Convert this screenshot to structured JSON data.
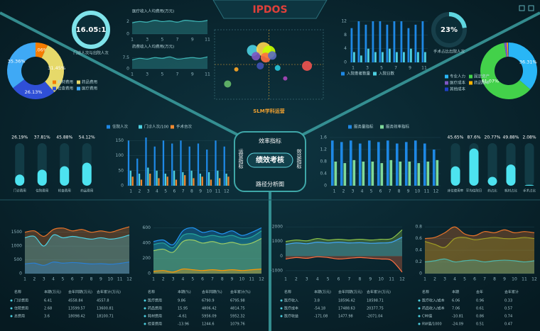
{
  "brand": "IPDOS",
  "hub": {
    "top": "效率指标",
    "center": "绩效考核",
    "left": "运营指标",
    "right": "效益指标",
    "bottom": "路径分析图"
  },
  "chart_data": [
    {
      "type": "gauge",
      "values": [
        16.05
      ],
      "value_labels": [
        "16.05:1"
      ],
      "label": "门诊人次与出院人次"
    },
    {
      "type": "pie",
      "categories": [
        "耗材费用",
        "药品费用",
        "检查费用",
        "医疗费用"
      ],
      "values": [
        7.06,
        31.45,
        26.13,
        35.36
      ],
      "value_labels": [
        "7.06%",
        "31.45%",
        "26.13%",
        "35.36%"
      ],
      "colors": [
        "#f57c00",
        "#e6d96a",
        "#2f4fd6",
        "#3fa9f5"
      ]
    },
    {
      "type": "line",
      "area": true,
      "title": "医疗收入人均费用(万元)",
      "categories": [
        "1",
        null,
        "3",
        null,
        "5",
        null,
        "7",
        null,
        "9",
        null,
        "11"
      ],
      "series": [
        {
          "color": "#3fb8b8",
          "values": [
            1.8,
            2.0,
            1.9,
            2.2,
            2.0,
            2.1,
            1.9,
            2.2,
            2.1,
            2.0,
            2.2
          ]
        }
      ],
      "ylim": [
        0,
        2.5
      ],
      "yticks": [
        0,
        2
      ]
    },
    {
      "type": "line",
      "area": true,
      "title": "药费收入人均费用(万元)",
      "categories": [
        "1",
        null,
        "3",
        null,
        "5",
        null,
        "7",
        null,
        "9",
        null,
        "11"
      ],
      "series": [
        {
          "color": "#3fb8b8",
          "values": [
            6,
            7,
            6.5,
            7.5,
            7,
            8,
            6.5,
            7,
            7.5,
            7,
            8
          ]
        }
      ],
      "ylim": [
        0,
        10
      ],
      "yticks": [
        0,
        7.5
      ]
    },
    {
      "type": "scatter",
      "title": "SLM学科运营",
      "x": [
        3.5,
        4.5,
        5.0,
        4.7,
        5.3,
        3.8,
        4.2,
        5.8,
        8.5,
        1.2,
        2.0,
        6.5
      ],
      "values": [
        7.0,
        7.2,
        6.8,
        6.0,
        6.3,
        6.2,
        4.8,
        4.5,
        4.8,
        2.2,
        4.3,
        3.0
      ],
      "sizes": [
        8,
        10,
        9,
        7,
        6,
        6,
        5,
        4,
        7,
        5,
        3,
        3
      ],
      "colors": [
        "#4dd0e1",
        "#ffd54f",
        "#c6ff00",
        "#ff7043",
        "#5c6bc0",
        "#7e57c2",
        "#3f51b5",
        "#26c6da",
        "#ef5350",
        "#66bb6a",
        "#ffa726",
        "#ab47bc"
      ],
      "xlim": [
        0,
        10
      ],
      "ylim": [
        0,
        10
      ]
    },
    {
      "type": "bar",
      "categories": [
        "1",
        null,
        "3",
        null,
        "5",
        null,
        "7",
        null,
        "9",
        null,
        "11"
      ],
      "series": [
        {
          "name": "入院患者数量",
          "color": "#1e88e5",
          "values": [
            10,
            12,
            11,
            12,
            12,
            11,
            12,
            12,
            10,
            11,
            12
          ]
        },
        {
          "name": "入院日数",
          "color": "#4dd0e1",
          "values": [
            3,
            2,
            4,
            3,
            3,
            4,
            3,
            3,
            4,
            3,
            3
          ]
        }
      ],
      "ylim": [
        0,
        12
      ],
      "yticks": [
        0,
        4,
        8,
        12
      ]
    },
    {
      "type": "gauge",
      "values": [
        23
      ],
      "value_labels": [
        "23%"
      ],
      "label": "手术占比出院人次",
      "ylim": [
        0,
        100
      ]
    },
    {
      "type": "pie",
      "categories": [
        "专业人力",
        "固定资产",
        "医疗成本",
        "药品成本",
        "其他成本"
      ],
      "values": [
        36.31,
        61.07,
        1.5,
        0.7,
        0.42
      ],
      "value_labels": [
        "36.31%",
        "61.07%",
        null,
        null,
        null
      ],
      "colors": [
        "#29b6f6",
        "#43d14a",
        "#7e57c2",
        "#ffb300",
        "#1e40c8"
      ]
    },
    {
      "type": "progress",
      "categories": [
        "门诊费用",
        "住院费用",
        "检查费用",
        "药品费用"
      ],
      "values": [
        26.19,
        37.81,
        45.88,
        54.12
      ],
      "value_labels": [
        "26.19%",
        "37.81%",
        "45.88%",
        "54.12%"
      ],
      "ylim": [
        0,
        100
      ]
    },
    {
      "type": "bar",
      "categories": [
        "1",
        "2",
        "3",
        "4",
        "5",
        "6",
        "7",
        "8",
        "9",
        "10",
        "11",
        "12"
      ],
      "series": [
        {
          "name": "住院人次",
          "color": "#1e88e5",
          "values": [
            150,
            90,
            160,
            130,
            150,
            140,
            150,
            130,
            140,
            120,
            150,
            130
          ]
        },
        {
          "name": "门诊人次/100",
          "color": "#4dd0e1",
          "values": [
            50,
            40,
            60,
            50,
            40,
            50,
            45,
            50,
            40,
            45,
            50,
            40
          ]
        },
        {
          "name": "手术台次",
          "color": "#f28a30",
          "values": [
            30,
            20,
            40,
            25,
            30,
            20,
            35,
            25,
            30,
            20,
            25,
            30
          ]
        }
      ],
      "ylim": [
        0,
        160
      ],
      "yticks": [
        0,
        50,
        100,
        150
      ]
    },
    {
      "type": "bar",
      "categories": [
        "1",
        "2",
        "3",
        "4",
        "5",
        "6",
        "7",
        "8",
        "9",
        "10",
        "11",
        "12"
      ],
      "series": [
        {
          "name": "服务量指标",
          "color": "#1e88e5",
          "values": [
            1.5,
            1.45,
            1.5,
            1.4,
            1.5,
            1.45,
            1.5,
            1.4,
            1.45,
            1.5,
            1.4,
            1.2
          ]
        },
        {
          "name": "服务效率指标",
          "color": "#7fd99a",
          "values": [
            0.8,
            0.75,
            0.85,
            0.8,
            0.8,
            0.75,
            0.85,
            0.8,
            0.8,
            0.75,
            0.8,
            0.85
          ]
        }
      ],
      "ylim": [
        0,
        1.6
      ],
      "yticks": [
        0,
        0.4,
        0.8,
        1.2,
        1.6
      ]
    },
    {
      "type": "progress",
      "categories": [
        "床位使用率",
        "平均住院日",
        "药占比",
        "耗材占比",
        "手术占比"
      ],
      "values": [
        45.65,
        87.6,
        20.77,
        49.88,
        2.08
      ],
      "value_labels": [
        "45.65%",
        "87.6%",
        "20.77%",
        "49.88%",
        "2.08%"
      ],
      "ylim": [
        0,
        100
      ]
    },
    {
      "type": "line",
      "area": true,
      "categories": [
        "1",
        "2",
        "3",
        "4",
        "5",
        "6",
        "7",
        "8",
        "9",
        "10",
        "11",
        "12"
      ],
      "series": [
        {
          "color": "#e8742a",
          "values": [
            1500,
            1550,
            1350,
            1600,
            1650,
            1550,
            1600,
            1500,
            1550,
            1500,
            1600,
            1700
          ]
        },
        {
          "color": "#4dd0e1",
          "values": [
            1300,
            1350,
            1000,
            1400,
            1300,
            1350,
            1300,
            1250,
            1300,
            1250,
            1300,
            1400
          ]
        },
        {
          "color": "#2a7fd4",
          "values": [
            350,
            380,
            300,
            420,
            380,
            400,
            380,
            350,
            360,
            340,
            370,
            420
          ]
        }
      ],
      "ylim": [
        0,
        1800
      ],
      "yticks": [
        0,
        500,
        1000,
        1500
      ]
    },
    {
      "type": "line",
      "area": true,
      "categories": [
        "1",
        "2",
        "3",
        "4",
        "5",
        "6",
        "7",
        "8",
        "9",
        "10",
        "11",
        "12"
      ],
      "series": [
        {
          "color": "#2196f3",
          "values": [
            420,
            440,
            380,
            560,
            600,
            540,
            560,
            520,
            560,
            500,
            540,
            600
          ]
        },
        {
          "color": "#26a69a",
          "values": [
            380,
            400,
            340,
            500,
            520,
            480,
            500,
            480,
            500,
            460,
            480,
            560
          ]
        },
        {
          "color": "#9ccc65",
          "values": [
            300,
            320,
            280,
            420,
            440,
            400,
            420,
            390,
            410,
            380,
            400,
            460
          ]
        },
        {
          "color": "#ff9800",
          "values": [
            30,
            40,
            20,
            60,
            50,
            40,
            50,
            40,
            50,
            40,
            50,
            60
          ]
        }
      ],
      "ylim": [
        0,
        650
      ],
      "yticks": [
        0,
        200,
        400,
        600
      ]
    },
    {
      "type": "line",
      "area": true,
      "categories": [
        "1",
        "2",
        "3",
        "4",
        "5",
        "6",
        "7",
        "8",
        "9",
        "10",
        "11",
        "12"
      ],
      "series": [
        {
          "color": "#8bc34a",
          "values": [
            1000,
            1100,
            1050,
            1200,
            1100,
            1150,
            1100,
            1150,
            1100,
            1150,
            1200,
            1800
          ]
        },
        {
          "color": "#42a5f5",
          "values": [
            800,
            900,
            850,
            950,
            900,
            950,
            900,
            920,
            880,
            900,
            950,
            1300
          ]
        },
        {
          "color": "#ff7043",
          "values": [
            -200,
            -100,
            -150,
            -50,
            -100,
            -200,
            -150,
            -100,
            -150,
            -200,
            -300,
            -1100
          ]
        }
      ],
      "ylim": [
        -1200,
        2200
      ],
      "yticks": [
        -1000,
        0,
        1000,
        2000
      ]
    },
    {
      "type": "line",
      "area": true,
      "categories": [
        "1",
        "2",
        "3",
        "4",
        "5",
        "6",
        "7",
        "8",
        "9",
        "10",
        "11",
        "12"
      ],
      "series": [
        {
          "color": "#e8742a",
          "values": [
            0.6,
            0.62,
            0.7,
            0.8,
            0.68,
            0.65,
            0.72,
            0.7,
            0.75,
            0.7,
            0.72,
            0.7
          ]
        },
        {
          "color": "#9e9d24",
          "values": [
            0.55,
            0.5,
            0.45,
            0.6,
            0.62,
            0.58,
            0.6,
            0.62,
            0.6,
            0.6,
            0.62,
            0.6
          ]
        },
        {
          "color": "#4db6ac",
          "values": [
            0.2,
            0.22,
            0.25,
            0.2,
            0.22,
            0.23,
            0.2,
            0.22,
            0.23,
            0.22,
            0.2,
            0.22
          ]
        }
      ],
      "ylim": [
        0,
        0.85
      ],
      "yticks": [
        0,
        0.2,
        0.4,
        0.6,
        0.8
      ]
    }
  ],
  "tables": [
    {
      "headers": [
        "名称",
        "本期(万元)",
        "去年同期(万元)",
        "去年累计(万元)"
      ],
      "rows": [
        [
          "门诊费用",
          "6.41",
          "4558.84",
          "4557.8"
        ],
        [
          "住院费用",
          "2.68",
          "13599.57",
          "13600.81"
        ],
        [
          "总费用",
          "3.6",
          "18098.42",
          "18100.71"
        ]
      ]
    },
    {
      "headers": [
        "名称",
        "本期(%)",
        "去年同期(%)",
        "去年累计(%)"
      ],
      "rows": [
        [
          "医疗费用",
          "9.86",
          "6790.9",
          "6795.98"
        ],
        [
          "药品费用",
          "15.95",
          "4806.42",
          "4814.75"
        ],
        [
          "耗材费用",
          "-4.61",
          "5956.09",
          "5952.32"
        ],
        [
          "检查费用",
          "-13.96",
          "1244.6",
          "1079.76"
        ]
      ]
    },
    {
      "headers": [
        "名称",
        "本期(万元)",
        "去年同期(万元)",
        "去年累计(万元)"
      ],
      "rows": [
        [
          "医疗收入",
          "3.8",
          "18596.42",
          "18598.71"
        ],
        [
          "医疗成本",
          "-54.18",
          "17488.63",
          "20377.75"
        ],
        [
          "医疗收益",
          "-171.08",
          "1477.98",
          "-2071.04"
        ]
      ]
    },
    {
      "headers": [
        "名称",
        "本期",
        "去年",
        "去年累计"
      ],
      "rows": [
        [
          "医疗收入/成本",
          "6.06",
          "0.96",
          "0.33"
        ],
        [
          "药品收入/成本",
          "7.06",
          "0.61",
          "0.57"
        ],
        [
          "CMI值",
          "-10.81",
          "0.86",
          "0.74"
        ],
        [
          "RW值/1000",
          "-24.09",
          "0.51",
          "0.47"
        ]
      ]
    }
  ]
}
